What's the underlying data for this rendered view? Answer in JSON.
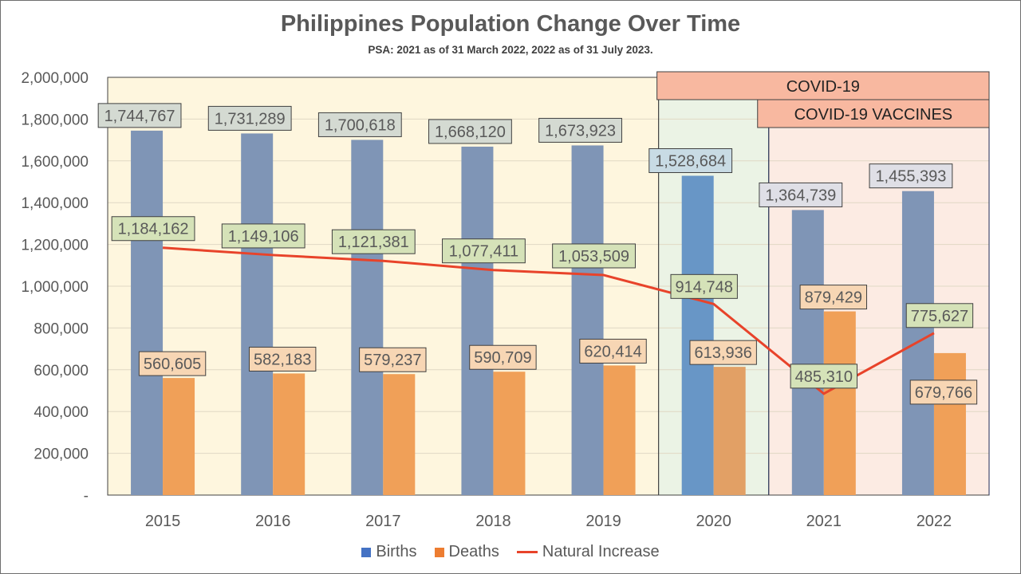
{
  "chart_data": {
    "type": "bar",
    "title": "Philippines Population Change Over Time",
    "subtitle": "PSA: 2021 as of 31 March 2022, 2022 as of 31 July 2023.",
    "categories": [
      "2015",
      "2016",
      "2017",
      "2018",
      "2019",
      "2020",
      "2021",
      "2022"
    ],
    "series": [
      {
        "name": "Births",
        "type": "bar",
        "values": [
          1744767,
          1731289,
          1700618,
          1668120,
          1673923,
          1528684,
          1364739,
          1455393
        ],
        "labels": [
          "1,744,767",
          "1,731,289",
          "1,700,618",
          "1,668,120",
          "1,673,923",
          "1,528,684",
          "1,364,739",
          "1,455,393"
        ]
      },
      {
        "name": "Deaths",
        "type": "bar",
        "values": [
          560605,
          582183,
          579237,
          590709,
          620414,
          613936,
          879429,
          679766
        ],
        "labels": [
          "560,605",
          "582,183",
          "579,237",
          "590,709",
          "620,414",
          "613,936",
          "879,429",
          "679,766"
        ]
      },
      {
        "name": "Natural Increase",
        "type": "line",
        "values": [
          1184162,
          1149106,
          1121381,
          1077411,
          1053509,
          914748,
          485310,
          775627
        ],
        "labels": [
          "1,184,162",
          "1,149,106",
          "1,121,381",
          "1,077,411",
          "1,053,509",
          "914,748",
          "485,310",
          "775,627"
        ]
      }
    ],
    "ylim": [
      0,
      2000000
    ],
    "yticks": [
      "-",
      "200,000",
      "400,000",
      "600,000",
      "800,000",
      "1,000,000",
      "1,200,000",
      "1,400,000",
      "1,600,000",
      "1,800,000",
      "2,000,000"
    ],
    "grid": true,
    "legend_position": "bottom",
    "annotations": [
      {
        "text": "COVID-19",
        "start_category": "2020",
        "end_category": "2022"
      },
      {
        "text": "COVID-19 VACCINES",
        "start_category": "2021",
        "end_category": "2022"
      }
    ],
    "colors": {
      "births": "#7f95b6",
      "births_period": "#6896c6",
      "deaths": "#f0a058",
      "deaths_period": "#e2a065",
      "line": "#e8432a",
      "legend_births": "#4472c4",
      "legend_deaths": "#ed7d31",
      "bg_pre_covid": "#fef6de",
      "bg_covid": "#ebf3e5",
      "bg_vaccine": "#fcebe3",
      "banner": "#f8b8a0"
    }
  }
}
